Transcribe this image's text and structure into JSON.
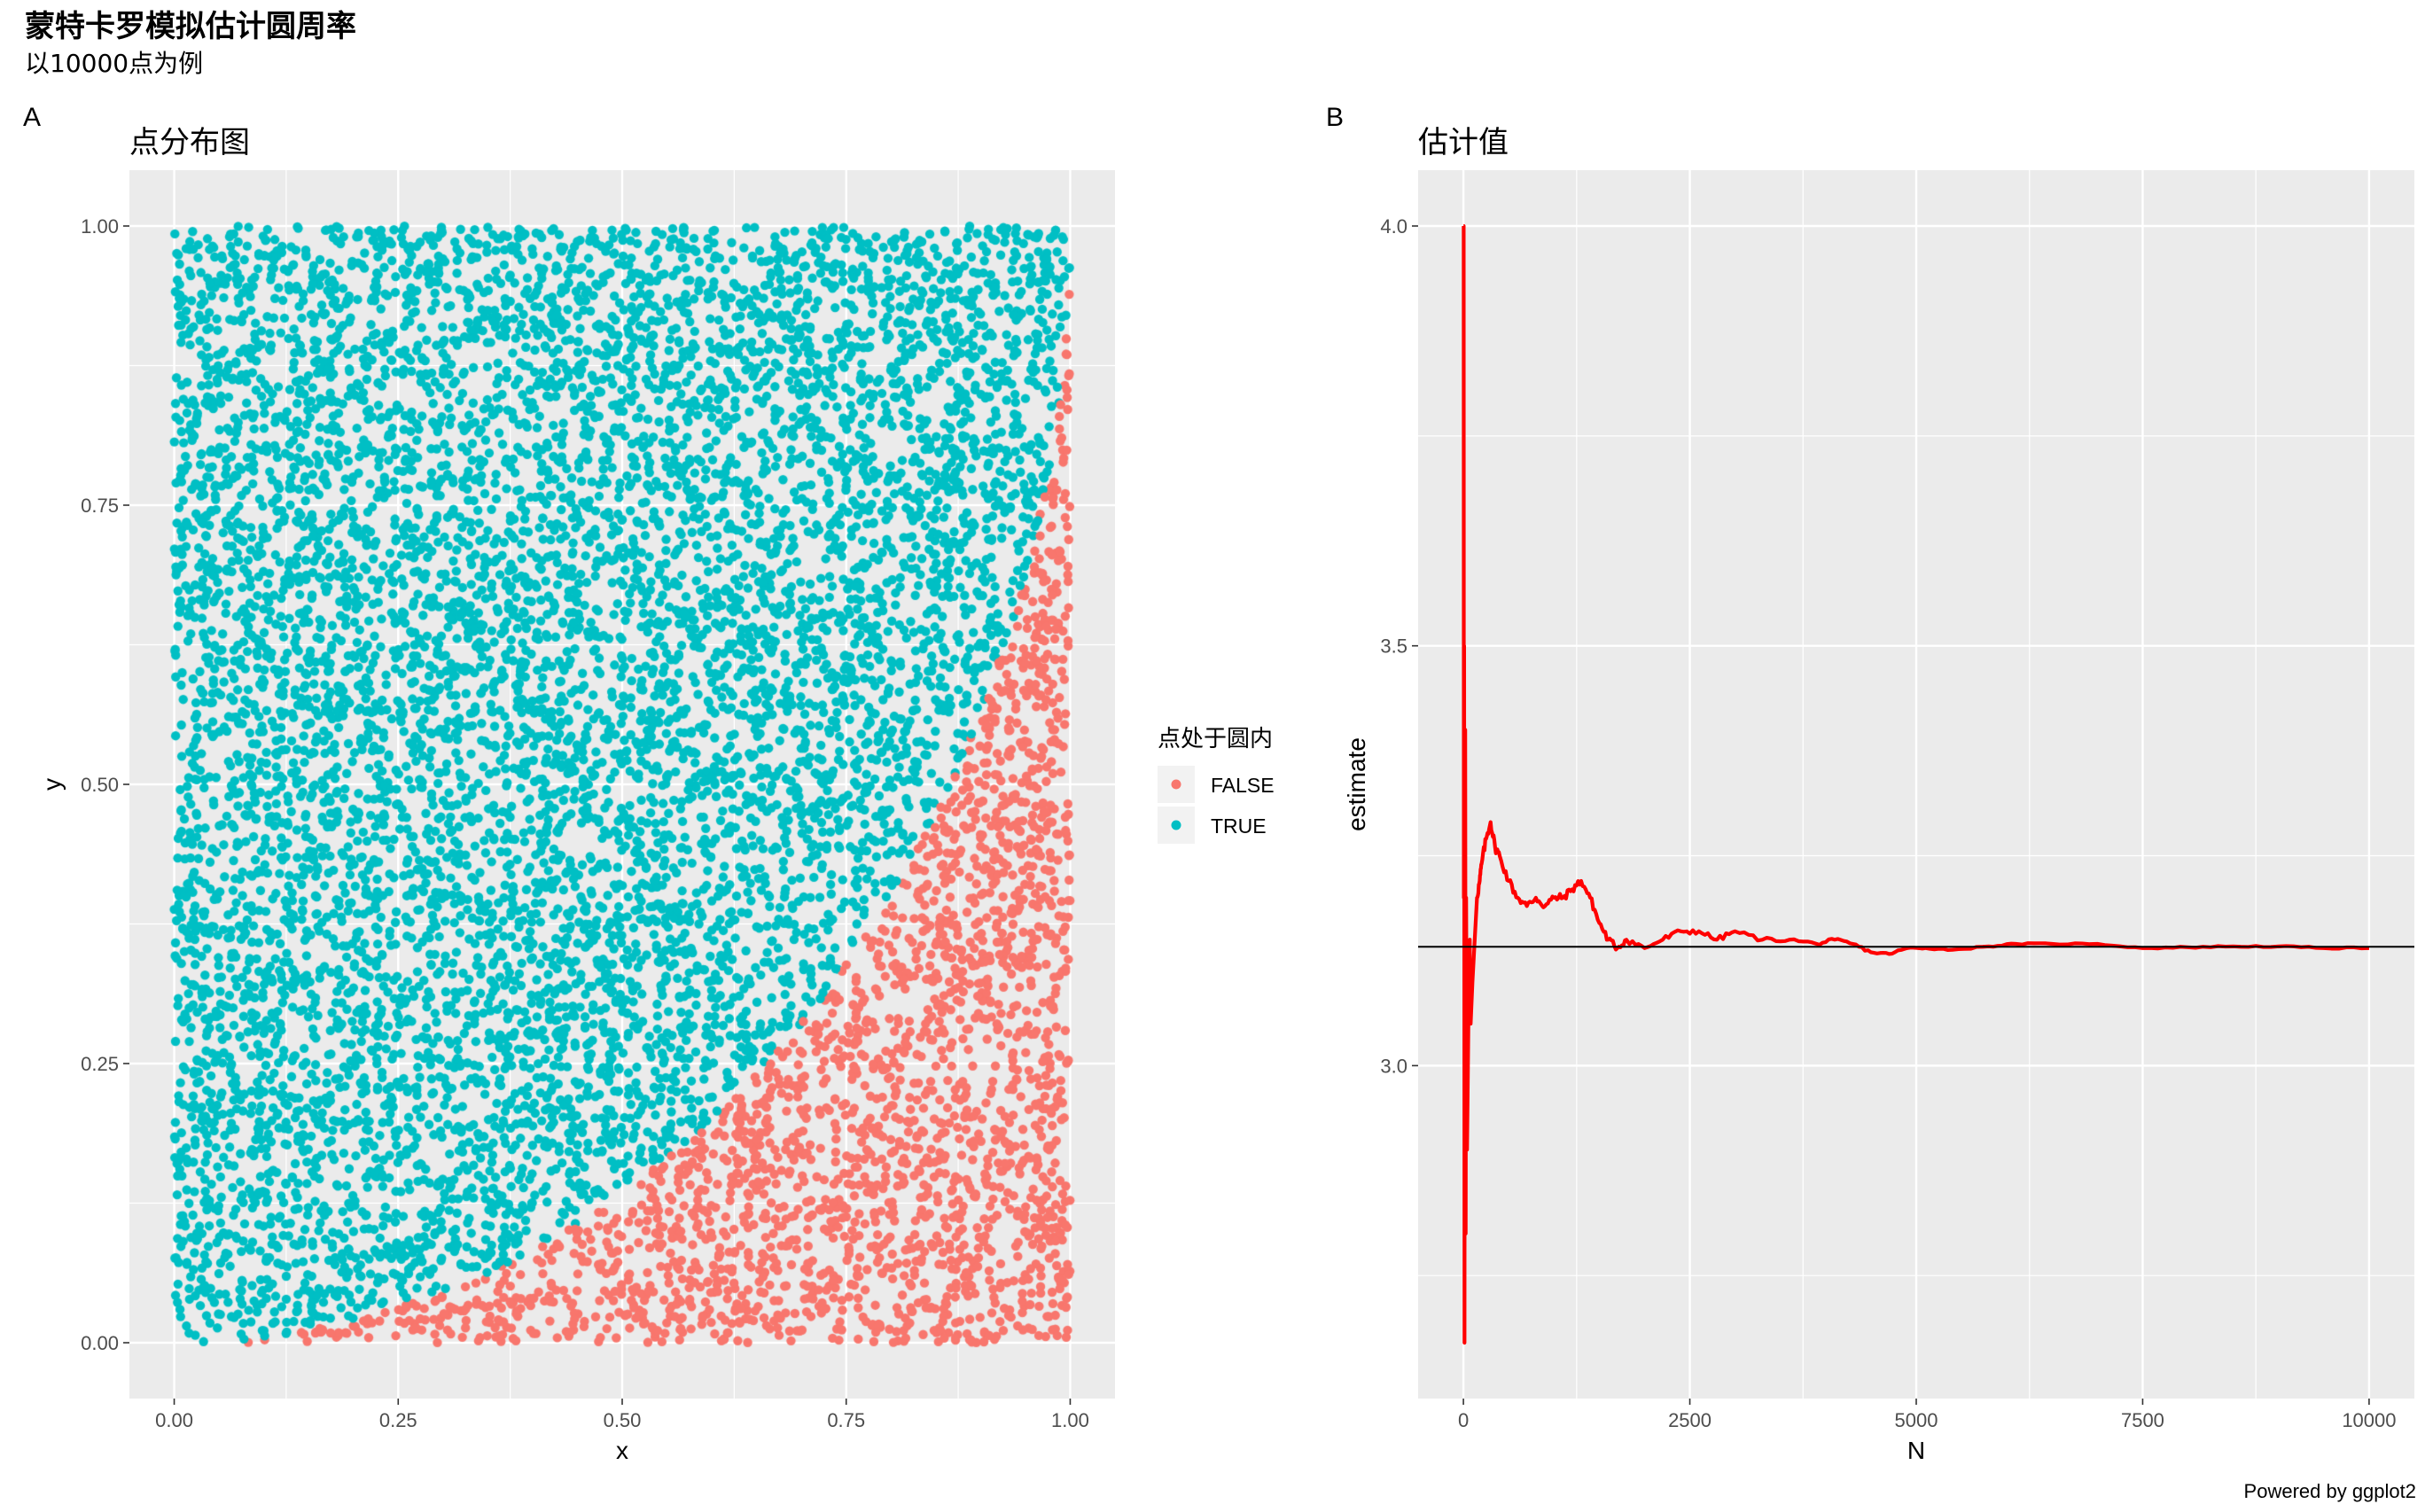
{
  "page": {
    "title": "蒙特卡罗模拟估计圆周率",
    "subtitle": "以10000点为例",
    "footer": "Powered by ggplot2"
  },
  "colors": {
    "panel_background": "#ebebeb",
    "grid_major": "#ffffff",
    "false_points": "#f8766d",
    "true_points": "#00bfc4",
    "estimate_line": "#ff0000",
    "reference_line": "#000000",
    "tick_text": "#4d4d4d"
  },
  "chart_data": [
    {
      "id": "A",
      "tag": "A",
      "type": "scatter",
      "title": "点分布图",
      "xlabel": "x",
      "ylabel": "y",
      "xlim": [
        0,
        1
      ],
      "ylim": [
        0,
        1
      ],
      "xticks": [
        0,
        0.25,
        0.5,
        0.75,
        1
      ],
      "xtick_labels": [
        "0.00",
        "0.25",
        "0.50",
        "0.75",
        "1.00"
      ],
      "yticks": [
        0,
        0.25,
        0.5,
        0.75,
        1
      ],
      "ytick_labels": [
        "0.00",
        "0.25",
        "0.50",
        "0.75",
        "1.00"
      ],
      "grid": true,
      "n_points": 10000,
      "classification": "x^2 + (1 - y)^2 <= 1",
      "legend": {
        "title": "点处于圆内",
        "placement": "right",
        "entries": [
          {
            "label": "FALSE",
            "color": "#f8766d"
          },
          {
            "label": "TRUE",
            "color": "#00bfc4"
          }
        ]
      }
    },
    {
      "id": "B",
      "tag": "B",
      "type": "line",
      "title": "估计值",
      "xlabel": "N",
      "ylabel": "estimate",
      "xlim": [
        0,
        10000
      ],
      "ylim": [
        2.67,
        4.0
      ],
      "xticks": [
        0,
        2500,
        5000,
        7500,
        10000
      ],
      "xtick_labels": [
        "0",
        "2500",
        "5000",
        "7500",
        "10000"
      ],
      "yticks": [
        3.0,
        3.5,
        4.0
      ],
      "ytick_labels": [
        "3.0",
        "3.5",
        "4.0"
      ],
      "grid": true,
      "reference_line": 3.1416,
      "series": [
        {
          "color": "#ff0000",
          "points": [
            [
              1,
              4.0
            ],
            [
              3,
              4.0
            ],
            [
              5,
              3.2
            ],
            [
              8,
              3.5
            ],
            [
              12,
              2.67
            ],
            [
              15,
              3.2
            ],
            [
              20,
              3.4
            ],
            [
              25,
              2.8
            ],
            [
              30,
              3.2
            ],
            [
              40,
              2.9
            ],
            [
              50,
              3.0
            ],
            [
              60,
              3.1
            ],
            [
              70,
              3.15
            ],
            [
              80,
              3.05
            ],
            [
              100,
              3.1
            ],
            [
              120,
              3.14
            ],
            [
              150,
              3.2
            ],
            [
              180,
              3.22
            ],
            [
              200,
              3.24
            ],
            [
              250,
              3.27
            ],
            [
              300,
              3.29
            ],
            [
              350,
              3.26
            ],
            [
              400,
              3.25
            ],
            [
              500,
              3.22
            ],
            [
              600,
              3.2
            ],
            [
              700,
              3.19
            ],
            [
              800,
              3.2
            ],
            [
              900,
              3.19
            ],
            [
              1000,
              3.2
            ],
            [
              1100,
              3.2
            ],
            [
              1200,
              3.21
            ],
            [
              1300,
              3.22
            ],
            [
              1400,
              3.2
            ],
            [
              1500,
              3.17
            ],
            [
              1600,
              3.15
            ],
            [
              1700,
              3.14
            ],
            [
              1800,
              3.15
            ],
            [
              2000,
              3.14
            ],
            [
              2200,
              3.15
            ],
            [
              2400,
              3.16
            ],
            [
              2600,
              3.16
            ],
            [
              2800,
              3.15
            ],
            [
              3000,
              3.16
            ],
            [
              3300,
              3.15
            ],
            [
              3600,
              3.15
            ],
            [
              3900,
              3.145
            ],
            [
              4100,
              3.15
            ],
            [
              4300,
              3.145
            ],
            [
              4500,
              3.135
            ],
            [
              4700,
              3.133
            ],
            [
              4900,
              3.14
            ],
            [
              5100,
              3.14
            ],
            [
              5400,
              3.138
            ],
            [
              5800,
              3.142
            ],
            [
              6100,
              3.145
            ],
            [
              6500,
              3.145
            ],
            [
              7000,
              3.145
            ],
            [
              7500,
              3.14
            ],
            [
              8000,
              3.141
            ],
            [
              8500,
              3.142
            ],
            [
              9000,
              3.142
            ],
            [
              9500,
              3.14
            ],
            [
              10000,
              3.14
            ]
          ]
        }
      ]
    }
  ]
}
